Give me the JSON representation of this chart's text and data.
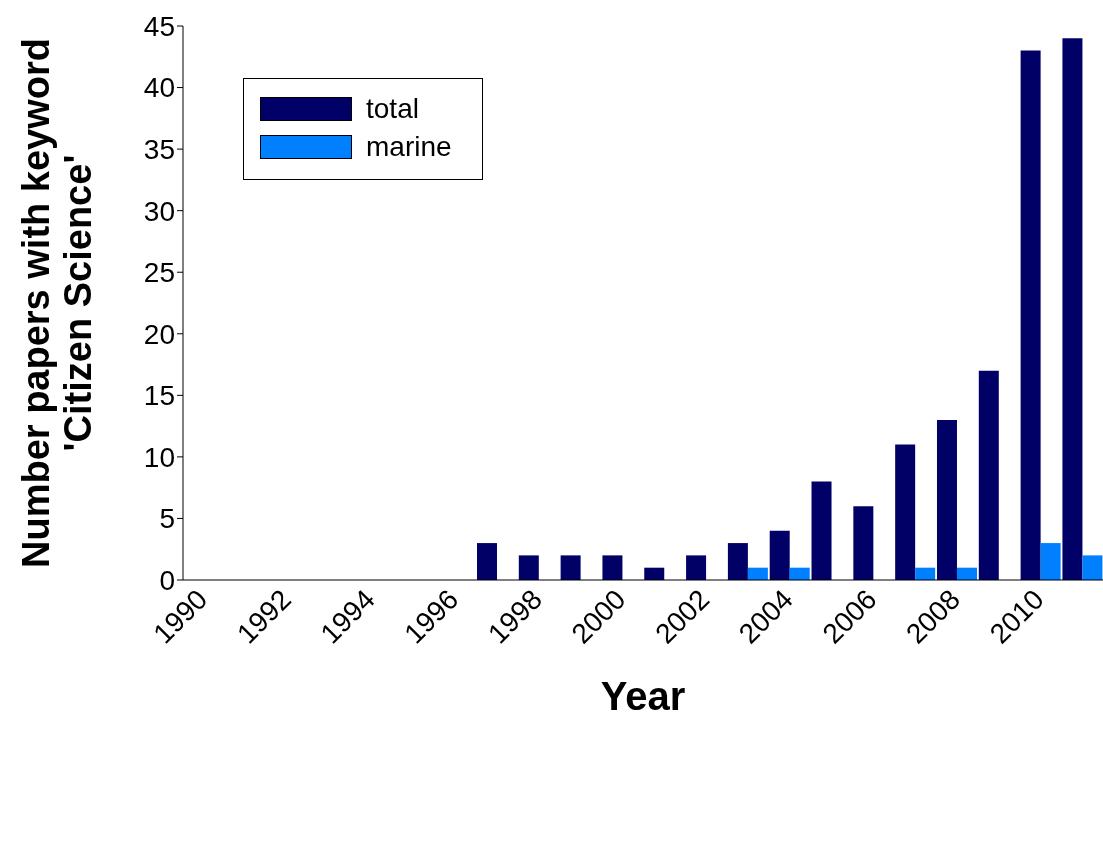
{
  "chart_data": {
    "type": "bar",
    "xlabel": "Year",
    "ylabel": "Number papers with keyword\n'Citizen Science'",
    "categories": [
      "1990",
      null,
      "1992",
      null,
      "1994",
      null,
      "1996",
      null,
      "1998",
      null,
      "2000",
      null,
      "2002",
      null,
      "2004",
      null,
      "2006",
      null,
      "2008",
      null,
      "2010",
      null
    ],
    "series": [
      {
        "name": "total",
        "color": "#000066",
        "values": [
          0,
          0,
          0,
          0,
          0,
          0,
          0,
          3,
          2,
          2,
          2,
          1,
          2,
          3,
          4,
          8,
          6,
          11,
          13,
          17,
          43,
          44
        ]
      },
      {
        "name": "marine",
        "color": "#0080ff",
        "values": [
          0,
          0,
          0,
          0,
          0,
          0,
          0,
          0,
          0,
          0,
          0,
          0,
          0,
          1,
          1,
          0,
          0,
          1,
          1,
          0,
          3,
          2
        ]
      }
    ],
    "ylim": [
      0,
      45
    ],
    "yticks": [
      0,
      5,
      10,
      15,
      20,
      25,
      30,
      35,
      40,
      45
    ],
    "grid": false,
    "legend": "top left"
  }
}
